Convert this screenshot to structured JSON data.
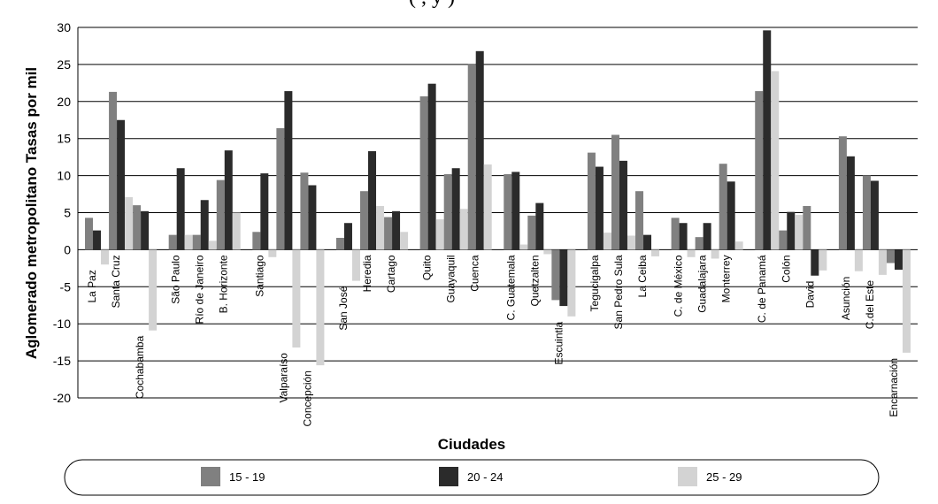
{
  "chart_data": {
    "type": "bar",
    "title": "(       ,          y        )",
    "xlabel": "Ciudades",
    "ylabel": "Aglomerado metropolitano Tasas por mil",
    "ylim": [
      -20,
      30
    ],
    "yticks": [
      -20,
      -15,
      -10,
      -5,
      0,
      5,
      10,
      15,
      20,
      25,
      30
    ],
    "grid": true,
    "legend_position": "bottom",
    "colors": [
      "#808080",
      "#2b2b2b",
      "#d3d3d3"
    ],
    "categories": [
      "La Paz",
      "Santa Cruz",
      "Cochabamba",
      "São Paulo",
      "Río de Janeiro",
      "B. Horizonte",
      "Santiago",
      "Valparaíso",
      "Concepción",
      "San José",
      "Heredia",
      "Cartago",
      "Quito",
      "Guayaquil",
      "Cuenca",
      "C. Guatemala",
      "Quetzalten",
      "Escuintla",
      "Tegucigalpa",
      "San Pedro Sula",
      "La Ceiba",
      "C. de México",
      "Guadalajara",
      "Monterrey",
      "C. de Panamá",
      "Colón",
      "David",
      "Asunción",
      "C.del Este",
      "Encarnación"
    ],
    "groups": [
      3,
      3,
      3,
      3,
      3,
      3,
      3,
      3,
      3,
      3
    ],
    "series": [
      {
        "name": "15 - 19",
        "values": [
          4.3,
          21.3,
          6.0,
          2.0,
          2.0,
          9.4,
          2.4,
          16.4,
          10.4,
          1.6,
          7.9,
          4.4,
          20.7,
          10.2,
          25.1,
          10.2,
          4.6,
          -6.8,
          13.1,
          15.5,
          7.9,
          4.3,
          1.7,
          11.6,
          21.4,
          2.6,
          5.9,
          15.3,
          10.0,
          -1.8
        ]
      },
      {
        "name": "20 - 24",
        "values": [
          2.6,
          17.5,
          5.2,
          11.0,
          6.7,
          13.4,
          10.3,
          21.4,
          8.7,
          3.6,
          13.3,
          5.2,
          22.4,
          11.0,
          26.8,
          10.5,
          6.3,
          -7.6,
          11.2,
          12.0,
          2.0,
          3.6,
          3.6,
          9.2,
          29.6,
          5.1,
          -3.5,
          12.6,
          9.3,
          -2.7
        ]
      },
      {
        "name": "25 - 29",
        "values": [
          -2.0,
          7.1,
          -10.9,
          2.0,
          1.2,
          5.0,
          -1.0,
          -13.2,
          -15.6,
          -4.2,
          5.9,
          2.4,
          4.1,
          5.5,
          11.5,
          0.7,
          -0.6,
          -9.0,
          2.3,
          1.9,
          -0.9,
          -1.0,
          -1.2,
          1.1,
          24.1,
          4.7,
          -2.8,
          -2.9,
          -3.4,
          -13.9
        ]
      }
    ]
  }
}
